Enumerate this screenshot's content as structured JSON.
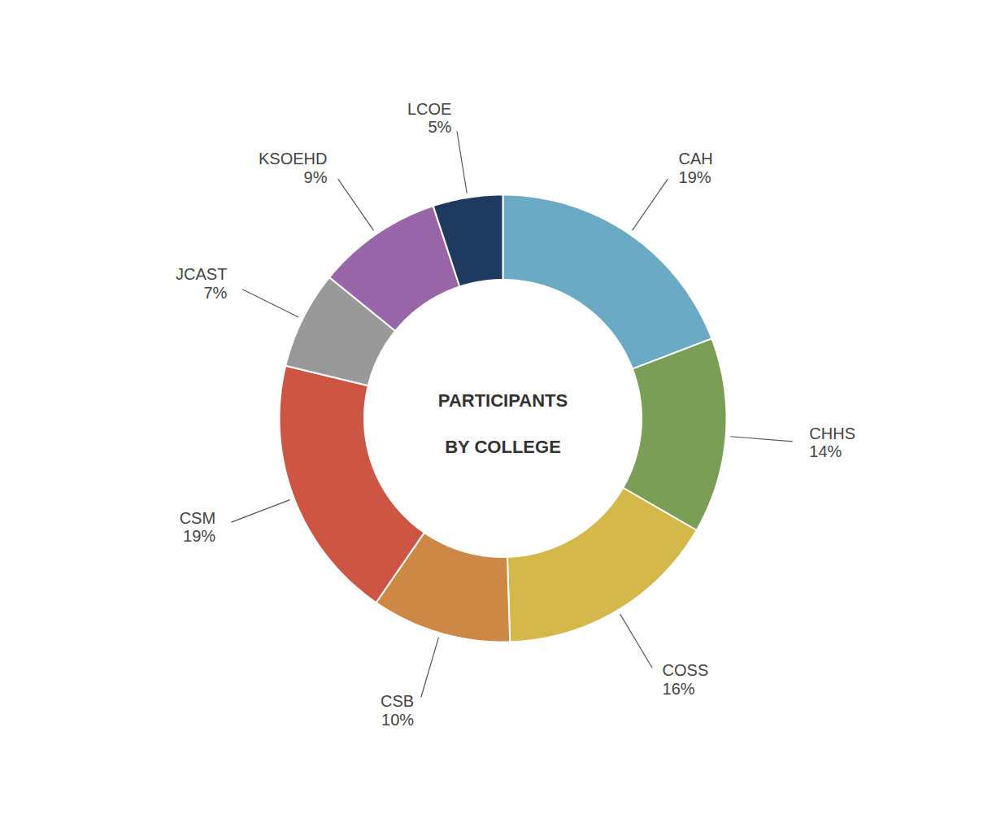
{
  "chart_data": {
    "type": "pie",
    "categories": [
      "CAH",
      "CHHS",
      "COSS",
      "CSB",
      "CSM",
      "JCAST",
      "KSOEHD",
      "LCOE"
    ],
    "values": [
      19,
      14,
      16,
      10,
      19,
      7,
      9,
      5
    ],
    "value_labels": [
      "19%",
      "14%",
      "16%",
      "10%",
      "19%",
      "7%",
      "9%",
      "5%"
    ],
    "data_labels": true,
    "colors": [
      "#6aaac5",
      "#7a9e56",
      "#d4b84a",
      "#cc8844",
      "#cc5544",
      "#999999",
      "#9966aa",
      "#1e3a5f"
    ],
    "annotations": [
      "PARTICIPANTS",
      "BY COLLEGE"
    ]
  }
}
